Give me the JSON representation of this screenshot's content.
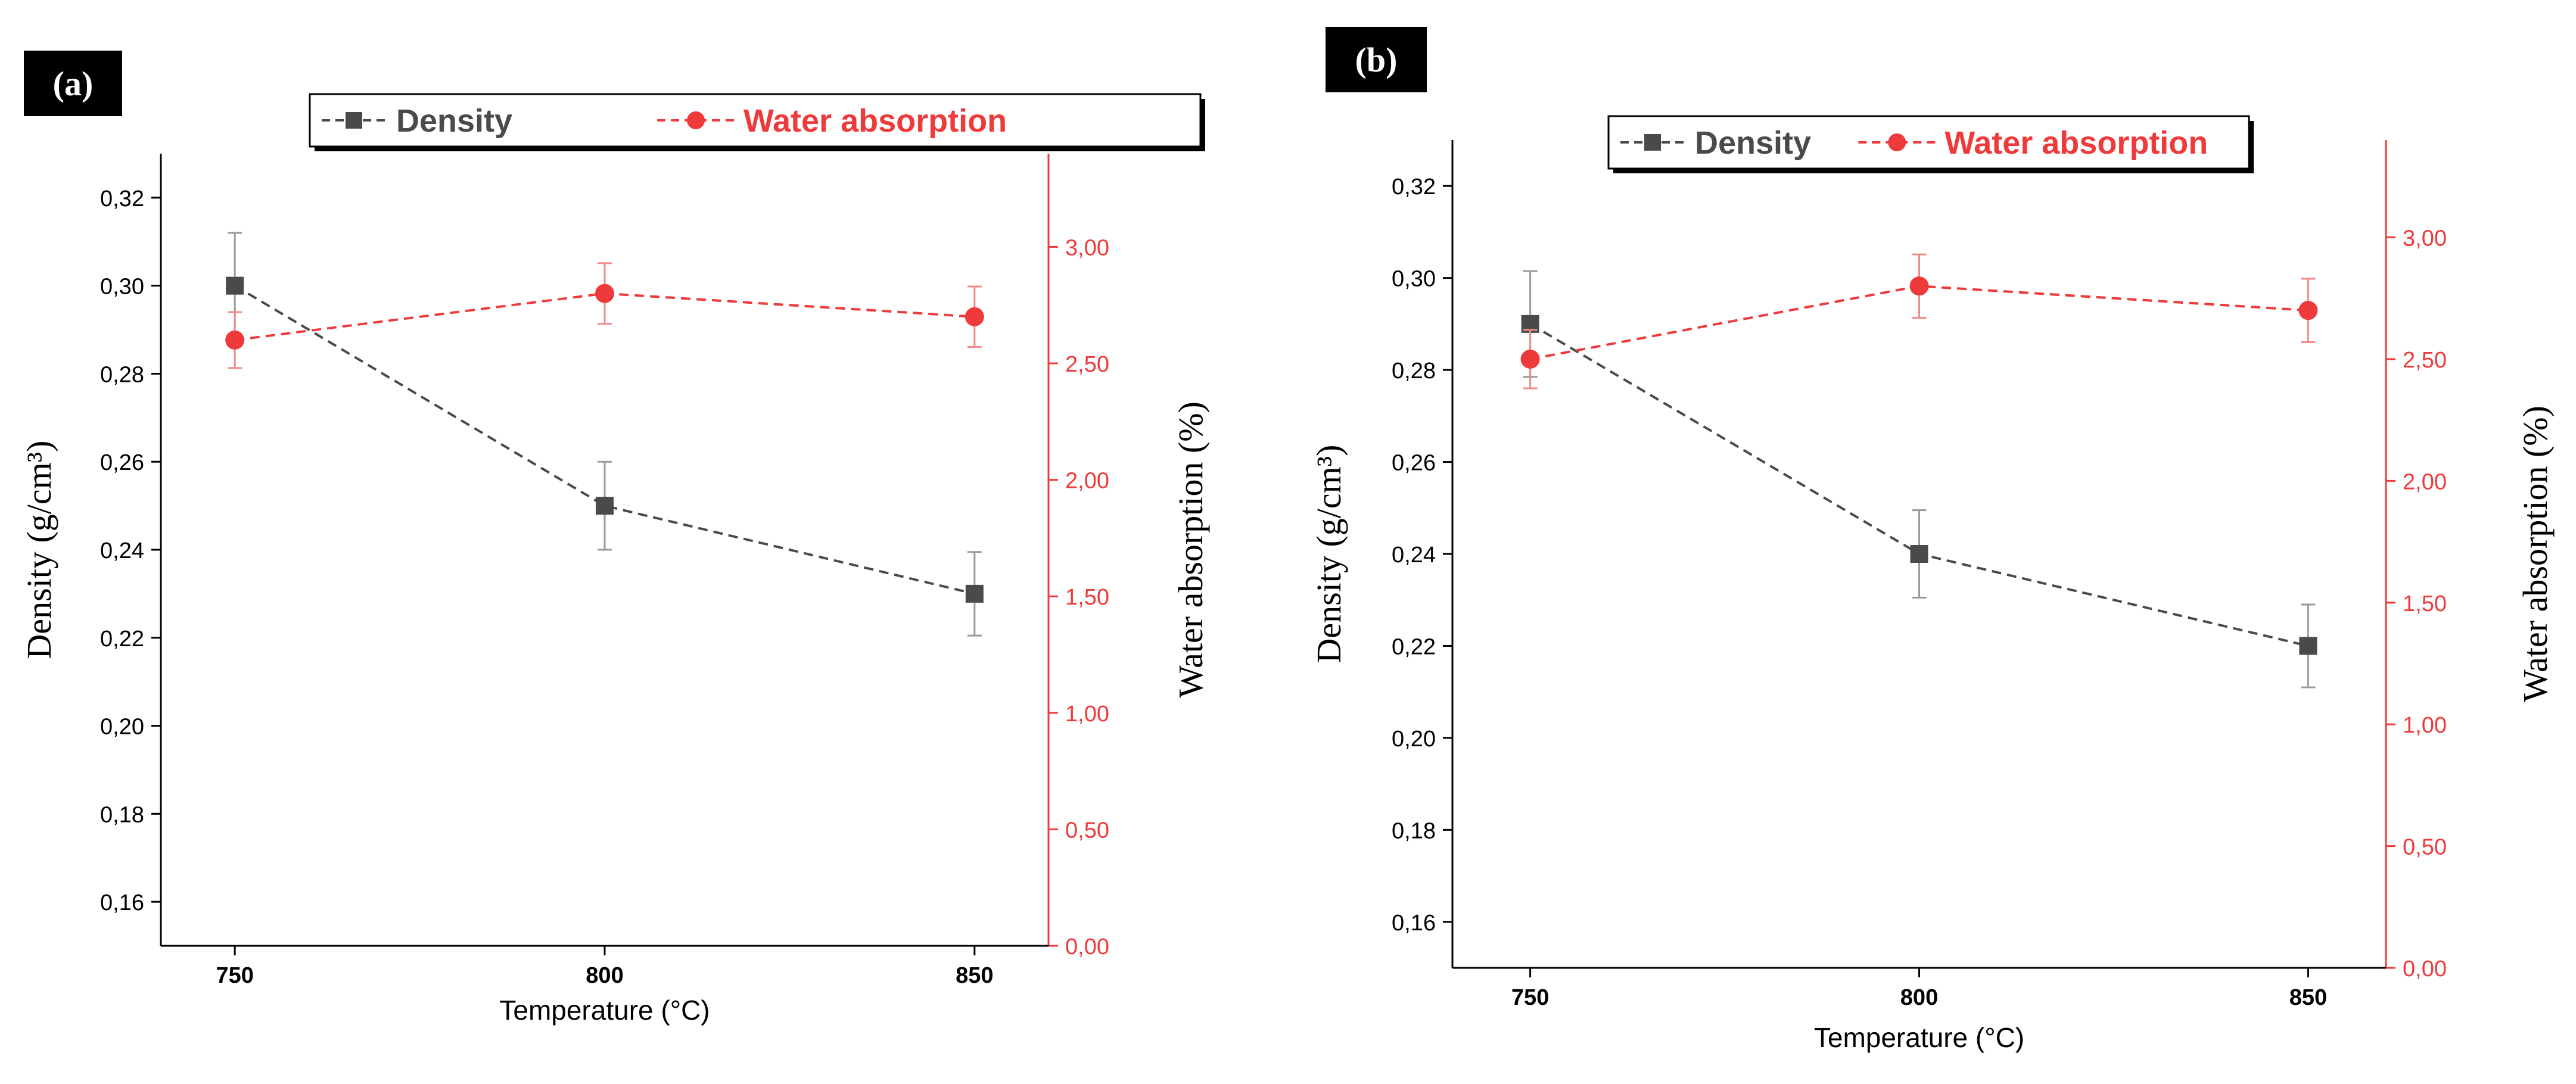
{
  "colors": {
    "density": "#4a4a4a",
    "water": "#ee3a3a",
    "density_err": "#9a9a9a",
    "water_err": "#f08a8a",
    "panel_badge_bg": "#000000",
    "panel_badge_text": "#ffffff"
  },
  "chart_data": [
    {
      "panel_label": "(a)",
      "type": "line",
      "xlabel": "Temperature (°C)",
      "ylabel": "Density (g/cm³)",
      "y2label": "Water absorption (%)",
      "x": [
        750,
        800,
        850
      ],
      "xlim": [
        740,
        860
      ],
      "xticks": [
        "750",
        "800",
        "850"
      ],
      "ylim": [
        0.15,
        0.33
      ],
      "yticks": [
        "0,16",
        "0,18",
        "0,20",
        "0,22",
        "0,24",
        "0,26",
        "0,28",
        "0,30",
        "0,32"
      ],
      "y2lim": [
        0.0,
        3.4
      ],
      "y2ticks": [
        "0,00",
        "0,50",
        "1,00",
        "1,50",
        "2,00",
        "2,50",
        "3,00"
      ],
      "legend": [
        "Density",
        "Water absorption"
      ],
      "series": [
        {
          "name": "Density",
          "axis": "left",
          "values": [
            0.3,
            0.25,
            0.23
          ],
          "errors": [
            0.012,
            0.01,
            0.0095
          ]
        },
        {
          "name": "Water absorption",
          "axis": "right",
          "values": [
            2.6,
            2.8,
            2.7
          ],
          "errors": [
            0.12,
            0.13,
            0.13
          ]
        }
      ]
    },
    {
      "panel_label": "(b)",
      "type": "line",
      "xlabel": "Temperature (°C)",
      "ylabel": "Density (g/cm³)",
      "y2label": "Water absorption (%)",
      "x": [
        750,
        800,
        850
      ],
      "xlim": [
        740,
        860
      ],
      "xticks": [
        "750",
        "800",
        "850"
      ],
      "ylim": [
        0.15,
        0.33
      ],
      "yticks": [
        "0,16",
        "0,18",
        "0,20",
        "0,22",
        "0,24",
        "0,26",
        "0,28",
        "0,30",
        "0,32"
      ],
      "y2lim": [
        0.0,
        3.4
      ],
      "y2ticks": [
        "0,00",
        "0,50",
        "1,00",
        "1,50",
        "2,00",
        "2,50",
        "3,00"
      ],
      "legend": [
        "Density",
        "Water absorption"
      ],
      "series": [
        {
          "name": "Density",
          "axis": "left",
          "values": [
            0.29,
            0.24,
            0.22
          ],
          "errors": [
            0.0115,
            0.0095,
            0.009
          ]
        },
        {
          "name": "Water absorption",
          "axis": "right",
          "values": [
            2.5,
            2.8,
            2.7
          ],
          "errors": [
            0.12,
            0.13,
            0.13
          ]
        }
      ]
    }
  ]
}
